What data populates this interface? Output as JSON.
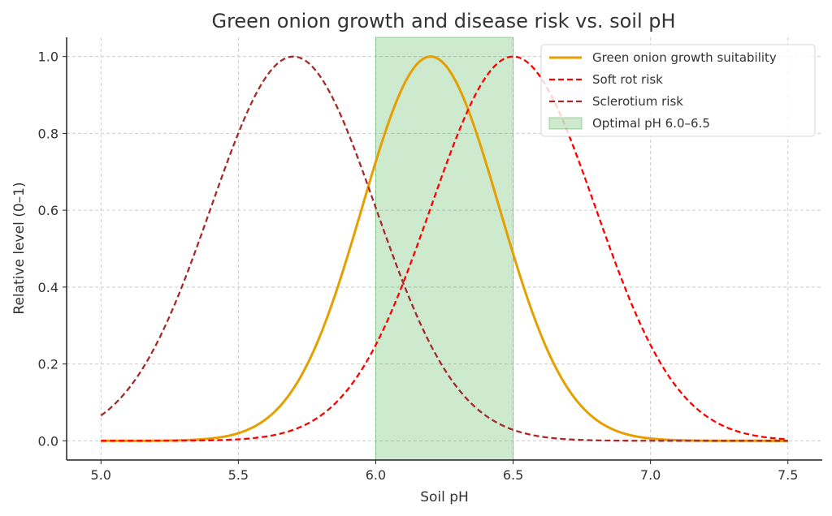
{
  "chart_data": {
    "type": "line",
    "title": "Green onion growth and disease risk vs. soil pH",
    "xlabel": "Soil pH",
    "ylabel": "Relative level (0–1)",
    "xlim": [
      4.875,
      7.625
    ],
    "ylim": [
      -0.05,
      1.05
    ],
    "xticks": [
      5.0,
      5.5,
      6.0,
      6.5,
      7.0,
      7.5
    ],
    "xtick_labels": [
      "5.0",
      "5.5",
      "6.0",
      "6.5",
      "7.0",
      "7.5"
    ],
    "yticks": [
      0.0,
      0.2,
      0.4,
      0.6,
      0.8,
      1.0
    ],
    "ytick_labels": [
      "0.0",
      "0.2",
      "0.4",
      "0.6",
      "0.8",
      "1.0"
    ],
    "grid": true,
    "legend_position": "top-right",
    "x_range": [
      5.0,
      7.5
    ],
    "series": [
      {
        "name": "Green onion growth suitability",
        "curve": "gaussian",
        "peak_x": 6.2,
        "sigma": 0.25,
        "peak_y": 1.0,
        "color": "#E69F00",
        "style": "solid",
        "sample_points": [
          [
            5.0,
            0.0
          ],
          [
            5.5,
            0.02
          ],
          [
            5.8,
            0.28
          ],
          [
            6.0,
            0.73
          ],
          [
            6.2,
            1.0
          ],
          [
            6.5,
            0.49
          ],
          [
            6.8,
            0.06
          ],
          [
            7.0,
            0.01
          ],
          [
            7.5,
            0.0
          ]
        ]
      },
      {
        "name": "Soft rot risk",
        "curve": "gaussian",
        "peak_x": 6.5,
        "sigma": 0.3,
        "peak_y": 1.0,
        "color": "#FF0000",
        "style": "dashed",
        "sample_points": [
          [
            5.0,
            0.0
          ],
          [
            5.5,
            0.004
          ],
          [
            6.0,
            0.25
          ],
          [
            6.1,
            0.41
          ],
          [
            6.5,
            1.0
          ],
          [
            7.0,
            0.25
          ],
          [
            7.5,
            0.004
          ]
        ]
      },
      {
        "name": "Sclerotium risk",
        "curve": "gaussian",
        "peak_x": 5.7,
        "sigma": 0.3,
        "peak_y": 1.0,
        "color": "#A52A2A",
        "style": "dashed",
        "sample_points": [
          [
            5.0,
            0.066
          ],
          [
            5.5,
            0.8
          ],
          [
            5.7,
            1.0
          ],
          [
            6.0,
            0.61
          ],
          [
            6.5,
            0.03
          ],
          [
            7.0,
            0.0
          ],
          [
            7.5,
            0.0
          ]
        ]
      }
    ],
    "shaded_region": {
      "name": "Optimal pH 6.0–6.5",
      "x_start": 6.0,
      "x_end": 6.5,
      "color": "#4CAF50",
      "opacity": 0.28
    }
  }
}
